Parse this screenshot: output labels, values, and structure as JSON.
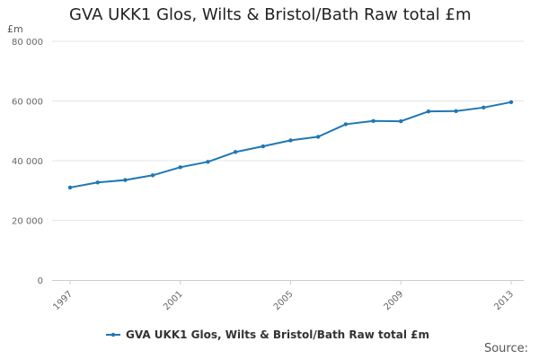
{
  "chart_data": {
    "type": "line",
    "title": "GVA UKK1 Glos, Wilts & Bristol/Bath Raw total £m",
    "ylabel": "£m",
    "xlabel": "",
    "x": [
      1997,
      1998,
      1999,
      2000,
      2001,
      2002,
      2003,
      2004,
      2005,
      2006,
      2007,
      2008,
      2009,
      2010,
      2011,
      2012,
      2013
    ],
    "series": [
      {
        "name": "GVA UKK1 Glos, Wilts & Bristol/Bath Raw total £m",
        "values": [
          31000,
          32700,
          33500,
          35100,
          37800,
          39600,
          42900,
          44800,
          46800,
          48000,
          52200,
          53300,
          53200,
          56500,
          56600,
          57800,
          59600
        ]
      }
    ],
    "x_ticks": [
      1997,
      2001,
      2005,
      2009,
      2013
    ],
    "y_ticks": [
      0,
      20000,
      40000,
      60000,
      80000
    ],
    "y_tick_labels": [
      "0",
      "20 000",
      "40 000",
      "60 000",
      "80 000"
    ],
    "ylim": [
      0,
      80000
    ],
    "xlim": [
      1997,
      2013
    ],
    "grid": true,
    "legend_position": "bottom",
    "source_label": "Source:",
    "series_color": "#1f77b4"
  }
}
